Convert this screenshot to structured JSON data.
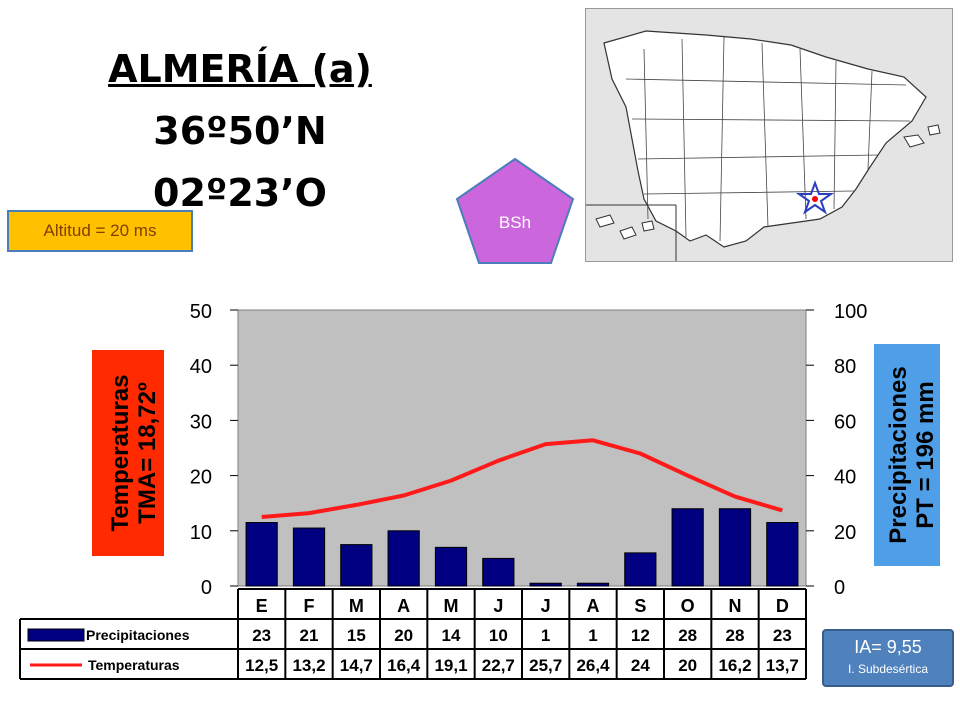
{
  "station": {
    "name": "ALMERÍA (a)",
    "latitude": "36º50’N",
    "longitude": "02º23’O",
    "altitude": "Altitud = 20 ms",
    "climate_code": "BSh",
    "aridity_index": "IA= 9,55",
    "aridity_class": "I. Subdesértica"
  },
  "colors": {
    "bars": "#000080",
    "line": "#ff1a1a",
    "plot_bg": "#c0c0c0",
    "temp_label_bg": "#ff2a00",
    "precip_label_bg": "#4f9ee8",
    "climate_badge": "#cc66dd",
    "altitude_box": "#ffc000",
    "ia_box": "#4f81bd"
  },
  "chart_data": {
    "type": "bar",
    "categories": [
      "E",
      "F",
      "M",
      "A",
      "M",
      "J",
      "J",
      "A",
      "S",
      "O",
      "N",
      "D"
    ],
    "series": [
      {
        "name": "Precipitaciones",
        "type": "bar",
        "axis": "right",
        "values": [
          23,
          21,
          15,
          20,
          14,
          10,
          1,
          1,
          12,
          28,
          28,
          23
        ]
      },
      {
        "name": "Temperaturas",
        "type": "line",
        "axis": "left",
        "values": [
          12.5,
          13.2,
          14.7,
          16.4,
          19.1,
          22.7,
          25.7,
          26.4,
          24,
          20,
          16.2,
          13.7
        ]
      }
    ],
    "left_axis": {
      "title_line1": "Temperaturas",
      "title_line2": "TMA=  18,72º",
      "ylim": [
        0,
        50
      ],
      "ticks": [
        "0",
        "10",
        "20",
        "30",
        "40",
        "50"
      ]
    },
    "right_axis": {
      "title_line1": "Precipitaciones",
      "title_line2": "PT = 196 mm",
      "ylim": [
        0,
        100
      ],
      "ticks": [
        "0",
        "20",
        "40",
        "60",
        "80",
        "100"
      ]
    },
    "table": {
      "precip_label": "Precipitaciones",
      "temp_label": "Temperaturas",
      "precip_row": [
        "23",
        "21",
        "15",
        "20",
        "14",
        "10",
        "1",
        "1",
        "12",
        "28",
        "28",
        "23"
      ],
      "temp_row": [
        "12,5",
        "13,2",
        "14,7",
        "16,4",
        "19,1",
        "22,7",
        "25,7",
        "26,4",
        "24",
        "20",
        "16,2",
        "13,7"
      ]
    },
    "grid": false
  }
}
